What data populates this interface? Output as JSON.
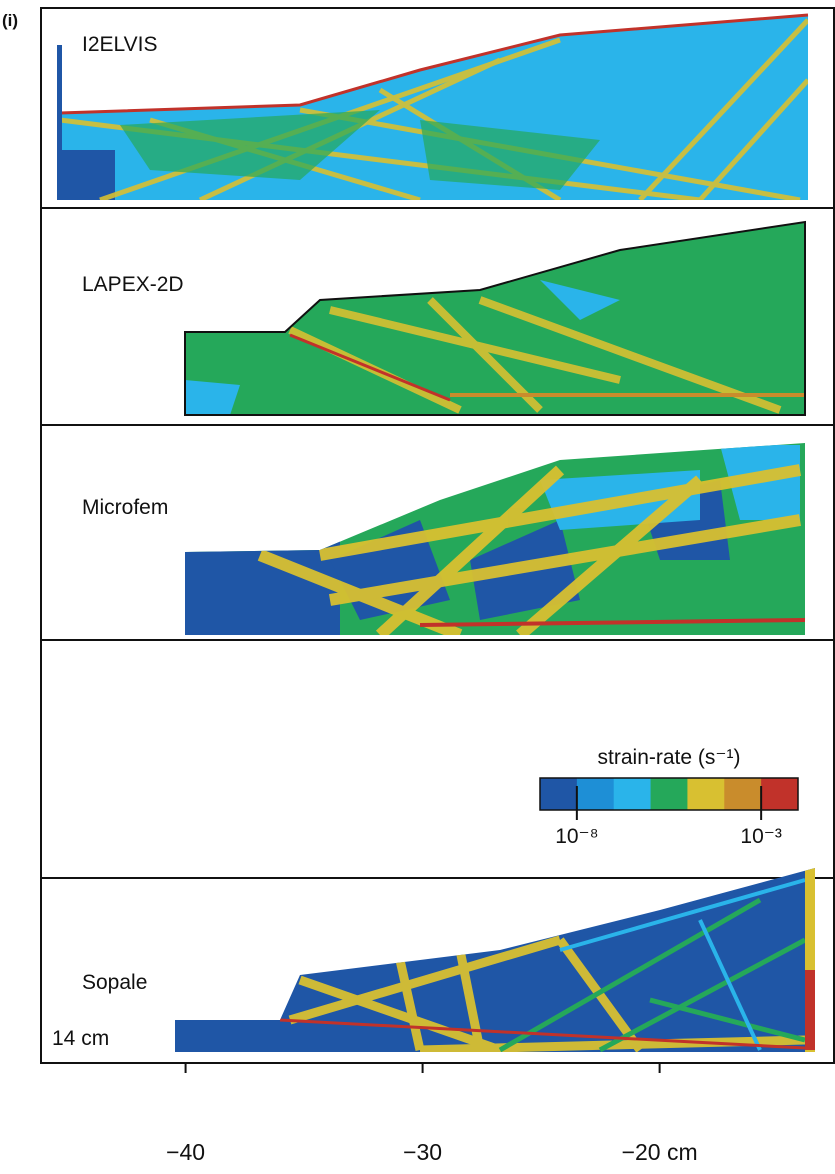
{
  "chart_data": {
    "type": "multi-panel",
    "panel_label": "(i)",
    "panels": [
      {
        "label": "I2ELVIS"
      },
      {
        "label": "LAPEX-2D"
      },
      {
        "label": "Microfem"
      },
      {
        "label": "Sopale"
      }
    ],
    "scale_label": "14 cm",
    "xlim": [
      -46.1,
      -12.6
    ],
    "xticks": [
      {
        "value": -40,
        "label": "−40"
      },
      {
        "value": -30,
        "label": "−30"
      },
      {
        "value": -20,
        "label": "−20 cm"
      }
    ],
    "colorbar": {
      "title": "strain-rate (s⁻¹)",
      "log_scale": true,
      "clim": [
        1e-09,
        0.01
      ],
      "colors": [
        "#1f56a6",
        "#1e8fd6",
        "#2ab4ea",
        "#25a85a",
        "#d8c031",
        "#c98c2c",
        "#c1322a"
      ],
      "ticks": [
        {
          "value": 1e-08,
          "label": "10⁻⁸"
        },
        {
          "value": 0.001,
          "label": "10⁻³"
        }
      ]
    }
  }
}
